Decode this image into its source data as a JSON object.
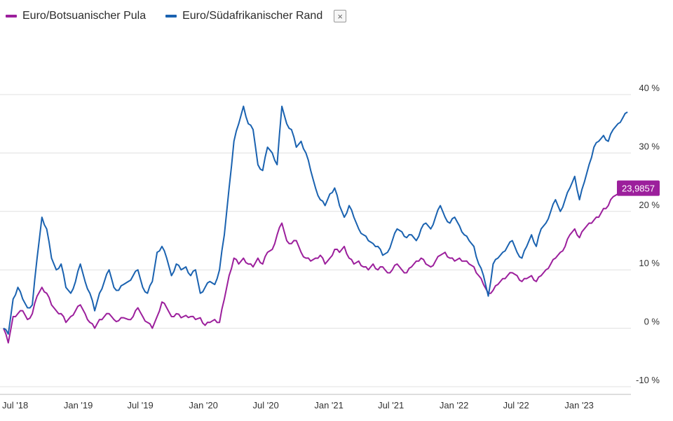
{
  "legend": {
    "series1": "Euro/Botsuanischer Pula",
    "series2": "Euro/Südafrikanischer Rand",
    "close": "×"
  },
  "colors": {
    "pula": "#9c1f9c",
    "rand": "#1a62b0",
    "grid": "#e0e0e0"
  },
  "chart_data": {
    "type": "line",
    "ylim": [
      -10,
      40
    ],
    "yticks": [
      "40 %",
      "30 %",
      "20 %",
      "10 %",
      "0 %",
      "-10 %"
    ],
    "ytick_values": [
      40,
      30,
      20,
      10,
      0,
      -10
    ],
    "xticks": [
      "Jul '18",
      "Jan '19",
      "Jul '19",
      "Jan '20",
      "Jul '20",
      "Jan '21",
      "Jul '21",
      "Jan '22",
      "Jul '22",
      "Jan '23"
    ],
    "xtick_dates": [
      "2018-07-01",
      "2019-01-01",
      "2019-07-01",
      "2020-01-01",
      "2020-07-01",
      "2021-01-01",
      "2021-07-01",
      "2022-01-01",
      "2022-07-01",
      "2023-01-01"
    ],
    "xlim": [
      "2018-05-28",
      "2023-06-01"
    ],
    "last_value_label": "23,9857",
    "series": [
      {
        "name": "Euro/Botsuanischer Pula",
        "color": "#9c1f9c",
        "points": [
          [
            "2018-05-28",
            0
          ],
          [
            "2018-06-11",
            -2.5
          ],
          [
            "2018-06-25",
            2
          ],
          [
            "2018-07-09",
            2.5
          ],
          [
            "2018-07-23",
            3
          ],
          [
            "2018-08-06",
            1.5
          ],
          [
            "2018-08-20",
            2.5
          ],
          [
            "2018-09-03",
            5.5
          ],
          [
            "2018-09-17",
            7
          ],
          [
            "2018-10-01",
            6
          ],
          [
            "2018-10-15",
            4
          ],
          [
            "2018-10-29",
            3
          ],
          [
            "2018-11-12",
            2.5
          ],
          [
            "2018-11-26",
            1
          ],
          [
            "2018-12-10",
            2
          ],
          [
            "2018-12-24",
            3
          ],
          [
            "2019-01-07",
            4
          ],
          [
            "2019-01-21",
            2.5
          ],
          [
            "2019-02-04",
            1
          ],
          [
            "2019-02-18",
            0
          ],
          [
            "2019-03-04",
            1.5
          ],
          [
            "2019-03-18",
            2
          ],
          [
            "2019-04-01",
            2.5
          ],
          [
            "2019-04-15",
            1.5
          ],
          [
            "2019-04-29",
            1.3
          ],
          [
            "2019-05-13",
            1.8
          ],
          [
            "2019-05-27",
            1.5
          ],
          [
            "2019-06-10",
            2
          ],
          [
            "2019-06-24",
            3.5
          ],
          [
            "2019-07-08",
            2
          ],
          [
            "2019-07-22",
            1
          ],
          [
            "2019-08-05",
            0
          ],
          [
            "2019-08-19",
            2
          ],
          [
            "2019-09-02",
            4.5
          ],
          [
            "2019-09-16",
            3.5
          ],
          [
            "2019-09-30",
            2
          ],
          [
            "2019-10-14",
            2.5
          ],
          [
            "2019-10-28",
            1.8
          ],
          [
            "2019-11-11",
            2.2
          ],
          [
            "2019-11-25",
            2
          ],
          [
            "2019-12-09",
            1.5
          ],
          [
            "2019-12-23",
            1.8
          ],
          [
            "2020-01-06",
            0.5
          ],
          [
            "2020-01-20",
            1
          ],
          [
            "2020-02-03",
            1.5
          ],
          [
            "2020-02-17",
            1
          ],
          [
            "2020-03-02",
            5
          ],
          [
            "2020-03-16",
            9
          ],
          [
            "2020-03-30",
            12
          ],
          [
            "2020-04-13",
            11
          ],
          [
            "2020-04-27",
            12
          ],
          [
            "2020-05-11",
            11
          ],
          [
            "2020-05-25",
            10.5
          ],
          [
            "2020-06-08",
            12
          ],
          [
            "2020-06-22",
            11
          ],
          [
            "2020-07-06",
            13
          ],
          [
            "2020-07-20",
            13.5
          ],
          [
            "2020-08-03",
            16
          ],
          [
            "2020-08-17",
            18
          ],
          [
            "2020-08-31",
            15
          ],
          [
            "2020-09-14",
            14.5
          ],
          [
            "2020-09-28",
            15
          ],
          [
            "2020-10-12",
            13
          ],
          [
            "2020-10-26",
            12
          ],
          [
            "2020-11-09",
            11.5
          ],
          [
            "2020-11-23",
            12
          ],
          [
            "2020-12-07",
            12.5
          ],
          [
            "2020-12-21",
            11
          ],
          [
            "2021-01-04",
            12
          ],
          [
            "2021-01-18",
            13.5
          ],
          [
            "2021-02-01",
            13
          ],
          [
            "2021-02-15",
            14
          ],
          [
            "2021-03-01",
            12
          ],
          [
            "2021-03-15",
            11
          ],
          [
            "2021-03-29",
            11.5
          ],
          [
            "2021-04-12",
            10.5
          ],
          [
            "2021-04-26",
            10
          ],
          [
            "2021-05-10",
            11
          ],
          [
            "2021-05-24",
            10
          ],
          [
            "2021-06-07",
            10.5
          ],
          [
            "2021-06-21",
            9.5
          ],
          [
            "2021-07-05",
            10
          ],
          [
            "2021-07-19",
            11
          ],
          [
            "2021-08-02",
            10
          ],
          [
            "2021-08-16",
            9.5
          ],
          [
            "2021-08-30",
            10.5
          ],
          [
            "2021-09-13",
            11.5
          ],
          [
            "2021-09-27",
            12
          ],
          [
            "2021-10-11",
            11
          ],
          [
            "2021-10-25",
            10.5
          ],
          [
            "2021-11-08",
            11.5
          ],
          [
            "2021-11-22",
            12.5
          ],
          [
            "2021-12-06",
            13
          ],
          [
            "2021-12-20",
            12
          ],
          [
            "2022-01-03",
            11.5
          ],
          [
            "2022-01-17",
            12
          ],
          [
            "2022-01-31",
            11.5
          ],
          [
            "2022-02-14",
            11
          ],
          [
            "2022-02-28",
            10.5
          ],
          [
            "2022-03-14",
            9
          ],
          [
            "2022-03-28",
            7.5
          ],
          [
            "2022-04-11",
            6
          ],
          [
            "2022-04-25",
            6.5
          ],
          [
            "2022-05-09",
            7.5
          ],
          [
            "2022-05-23",
            8.5
          ],
          [
            "2022-06-06",
            9
          ],
          [
            "2022-06-20",
            9.5
          ],
          [
            "2022-07-04",
            9
          ],
          [
            "2022-07-18",
            8
          ],
          [
            "2022-08-01",
            8.5
          ],
          [
            "2022-08-15",
            9
          ],
          [
            "2022-08-29",
            8
          ],
          [
            "2022-09-12",
            9
          ],
          [
            "2022-09-26",
            10
          ],
          [
            "2022-10-10",
            11
          ],
          [
            "2022-10-24",
            12
          ],
          [
            "2022-11-07",
            13
          ],
          [
            "2022-11-21",
            14
          ],
          [
            "2022-12-05",
            16
          ],
          [
            "2022-12-19",
            17
          ],
          [
            "2023-01-02",
            15.5
          ],
          [
            "2023-01-16",
            17
          ],
          [
            "2023-01-30",
            18
          ],
          [
            "2023-02-13",
            18.5
          ],
          [
            "2023-02-27",
            19
          ],
          [
            "2023-03-13",
            20.5
          ],
          [
            "2023-03-27",
            21
          ],
          [
            "2023-04-10",
            22.5
          ],
          [
            "2023-04-24",
            23
          ],
          [
            "2023-05-08",
            23.5
          ],
          [
            "2023-05-22",
            23.98
          ]
        ]
      },
      {
        "name": "Euro/Südafrikanischer Rand",
        "color": "#1a62b0",
        "points": [
          [
            "2018-05-28",
            0
          ],
          [
            "2018-06-11",
            -1
          ],
          [
            "2018-06-25",
            5
          ],
          [
            "2018-07-09",
            7
          ],
          [
            "2018-07-23",
            5
          ],
          [
            "2018-08-06",
            3.5
          ],
          [
            "2018-08-20",
            4
          ],
          [
            "2018-09-03",
            12
          ],
          [
            "2018-09-17",
            19
          ],
          [
            "2018-10-01",
            17
          ],
          [
            "2018-10-15",
            12
          ],
          [
            "2018-10-29",
            10
          ],
          [
            "2018-11-12",
            11
          ],
          [
            "2018-11-26",
            7
          ],
          [
            "2018-12-10",
            6
          ],
          [
            "2018-12-24",
            8
          ],
          [
            "2019-01-07",
            11
          ],
          [
            "2019-01-21",
            8
          ],
          [
            "2019-02-04",
            6
          ],
          [
            "2019-02-18",
            3
          ],
          [
            "2019-03-04",
            6
          ],
          [
            "2019-03-18",
            8
          ],
          [
            "2019-04-01",
            10
          ],
          [
            "2019-04-15",
            7
          ],
          [
            "2019-04-29",
            6.5
          ],
          [
            "2019-05-13",
            7.5
          ],
          [
            "2019-05-27",
            8
          ],
          [
            "2019-06-10",
            9
          ],
          [
            "2019-06-24",
            10
          ],
          [
            "2019-07-08",
            7
          ],
          [
            "2019-07-22",
            6
          ],
          [
            "2019-08-05",
            8
          ],
          [
            "2019-08-19",
            13
          ],
          [
            "2019-09-02",
            14
          ],
          [
            "2019-09-16",
            12
          ],
          [
            "2019-09-30",
            9
          ],
          [
            "2019-10-14",
            11
          ],
          [
            "2019-10-28",
            10
          ],
          [
            "2019-11-11",
            10.5
          ],
          [
            "2019-11-25",
            9
          ],
          [
            "2019-12-09",
            10
          ],
          [
            "2019-12-23",
            6
          ],
          [
            "2020-01-06",
            7
          ],
          [
            "2020-01-20",
            8
          ],
          [
            "2020-02-03",
            7.5
          ],
          [
            "2020-02-17",
            10
          ],
          [
            "2020-03-02",
            16
          ],
          [
            "2020-03-16",
            24
          ],
          [
            "2020-03-30",
            32
          ],
          [
            "2020-04-13",
            35
          ],
          [
            "2020-04-27",
            38
          ],
          [
            "2020-05-11",
            35
          ],
          [
            "2020-05-25",
            34
          ],
          [
            "2020-06-08",
            28
          ],
          [
            "2020-06-22",
            27
          ],
          [
            "2020-07-06",
            31
          ],
          [
            "2020-07-20",
            30
          ],
          [
            "2020-08-03",
            28
          ],
          [
            "2020-08-17",
            38
          ],
          [
            "2020-08-31",
            35
          ],
          [
            "2020-09-14",
            34
          ],
          [
            "2020-09-28",
            31
          ],
          [
            "2020-10-12",
            32
          ],
          [
            "2020-10-26",
            30
          ],
          [
            "2020-11-09",
            27
          ],
          [
            "2020-11-23",
            24
          ],
          [
            "2020-12-07",
            22
          ],
          [
            "2020-12-21",
            21
          ],
          [
            "2021-01-04",
            23
          ],
          [
            "2021-01-18",
            24
          ],
          [
            "2021-02-01",
            21
          ],
          [
            "2021-02-15",
            19
          ],
          [
            "2021-03-01",
            21
          ],
          [
            "2021-03-15",
            19
          ],
          [
            "2021-03-29",
            17
          ],
          [
            "2021-04-12",
            16
          ],
          [
            "2021-04-26",
            15
          ],
          [
            "2021-05-10",
            14.5
          ],
          [
            "2021-05-24",
            14
          ],
          [
            "2021-06-07",
            12.5
          ],
          [
            "2021-06-21",
            13
          ],
          [
            "2021-07-05",
            15
          ],
          [
            "2021-07-19",
            17
          ],
          [
            "2021-08-02",
            16.5
          ],
          [
            "2021-08-16",
            15.5
          ],
          [
            "2021-08-30",
            16
          ],
          [
            "2021-09-13",
            15
          ],
          [
            "2021-09-27",
            17
          ],
          [
            "2021-10-11",
            18
          ],
          [
            "2021-10-25",
            17
          ],
          [
            "2021-11-08",
            19
          ],
          [
            "2021-11-22",
            21
          ],
          [
            "2021-12-06",
            19
          ],
          [
            "2021-12-20",
            18
          ],
          [
            "2022-01-03",
            19
          ],
          [
            "2022-01-17",
            17.5
          ],
          [
            "2022-01-31",
            16
          ],
          [
            "2022-02-14",
            15
          ],
          [
            "2022-02-28",
            14
          ],
          [
            "2022-03-14",
            11
          ],
          [
            "2022-03-28",
            9
          ],
          [
            "2022-04-11",
            5.5
          ],
          [
            "2022-04-25",
            11
          ],
          [
            "2022-05-09",
            12
          ],
          [
            "2022-05-23",
            13
          ],
          [
            "2022-06-06",
            14
          ],
          [
            "2022-06-20",
            15
          ],
          [
            "2022-07-04",
            13
          ],
          [
            "2022-07-18",
            12
          ],
          [
            "2022-08-01",
            14
          ],
          [
            "2022-08-15",
            16
          ],
          [
            "2022-08-29",
            14
          ],
          [
            "2022-09-12",
            17
          ],
          [
            "2022-09-26",
            18
          ],
          [
            "2022-10-10",
            20
          ],
          [
            "2022-10-24",
            22
          ],
          [
            "2022-11-07",
            20
          ],
          [
            "2022-11-21",
            22
          ],
          [
            "2022-12-05",
            24
          ],
          [
            "2022-12-19",
            26
          ],
          [
            "2023-01-02",
            22
          ],
          [
            "2023-01-16",
            25
          ],
          [
            "2023-01-30",
            28
          ],
          [
            "2023-02-13",
            31
          ],
          [
            "2023-02-27",
            32
          ],
          [
            "2023-03-13",
            33
          ],
          [
            "2023-03-27",
            32
          ],
          [
            "2023-04-10",
            34
          ],
          [
            "2023-04-24",
            35
          ],
          [
            "2023-05-08",
            36
          ],
          [
            "2023-05-22",
            37
          ]
        ]
      }
    ]
  }
}
